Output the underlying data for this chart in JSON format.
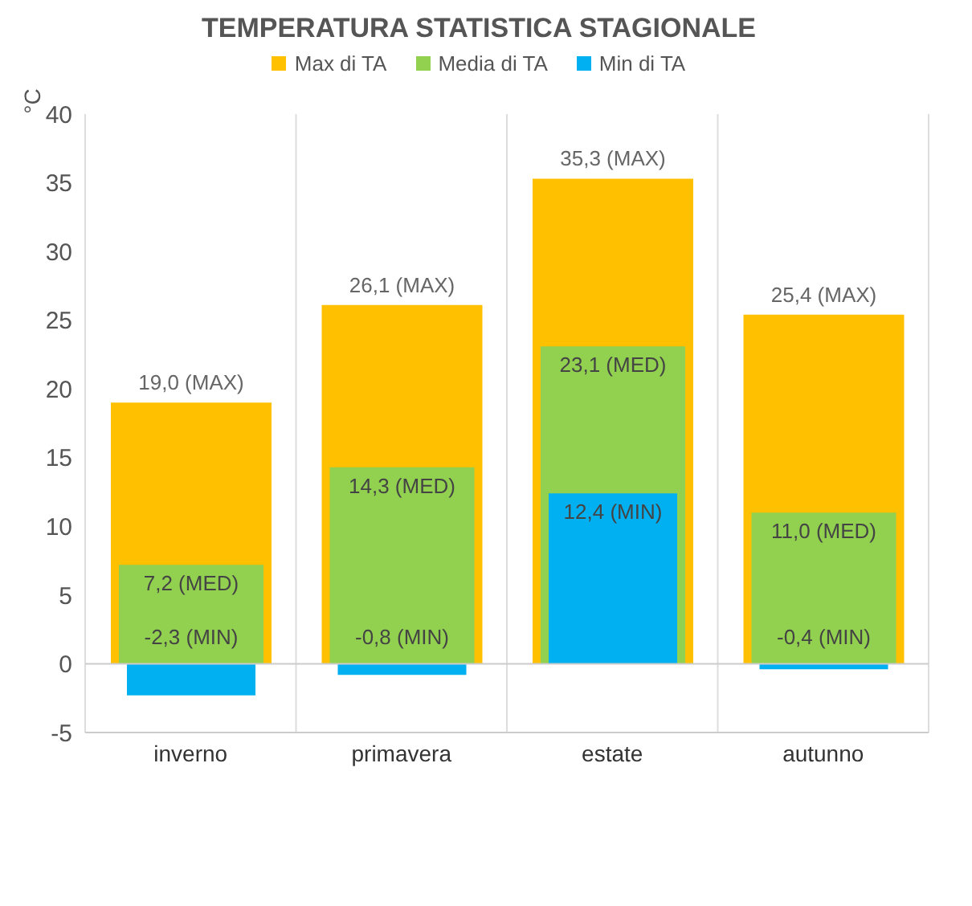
{
  "chart_data": {
    "type": "bar",
    "title": "TEMPERATURA STATISTICA STAGIONALE",
    "ylabel": "°C",
    "categories": [
      "inverno",
      "primavera",
      "estate",
      "autunno"
    ],
    "series": [
      {
        "name": "Max di TA",
        "color": "#ffc000",
        "values": [
          19.0,
          26.1,
          35.3,
          25.4
        ],
        "value_labels": [
          "19,0 (MAX)",
          "26,1 (MAX)",
          "35,3 (MAX)",
          "25,4 (MAX)"
        ]
      },
      {
        "name": "Media di TA",
        "color": "#92d050",
        "values": [
          7.2,
          14.3,
          23.1,
          11.0
        ],
        "value_labels": [
          "7,2 (MED)",
          "14,3 (MED)",
          "23,1 (MED)",
          "11,0 (MED)"
        ]
      },
      {
        "name": "Min di TA",
        "color": "#00b0f0",
        "values": [
          -2.3,
          -0.8,
          12.4,
          -0.4
        ],
        "value_labels": [
          "-2,3 (MIN)",
          "-0,8 (MIN)",
          "12,4 (MIN)",
          "-0,4 (MIN)"
        ]
      }
    ],
    "ylim": [
      -5,
      40
    ],
    "yticks": [
      -5,
      0,
      5,
      10,
      15,
      20,
      25,
      30,
      35,
      40
    ],
    "grid": "x",
    "legend": "top"
  }
}
